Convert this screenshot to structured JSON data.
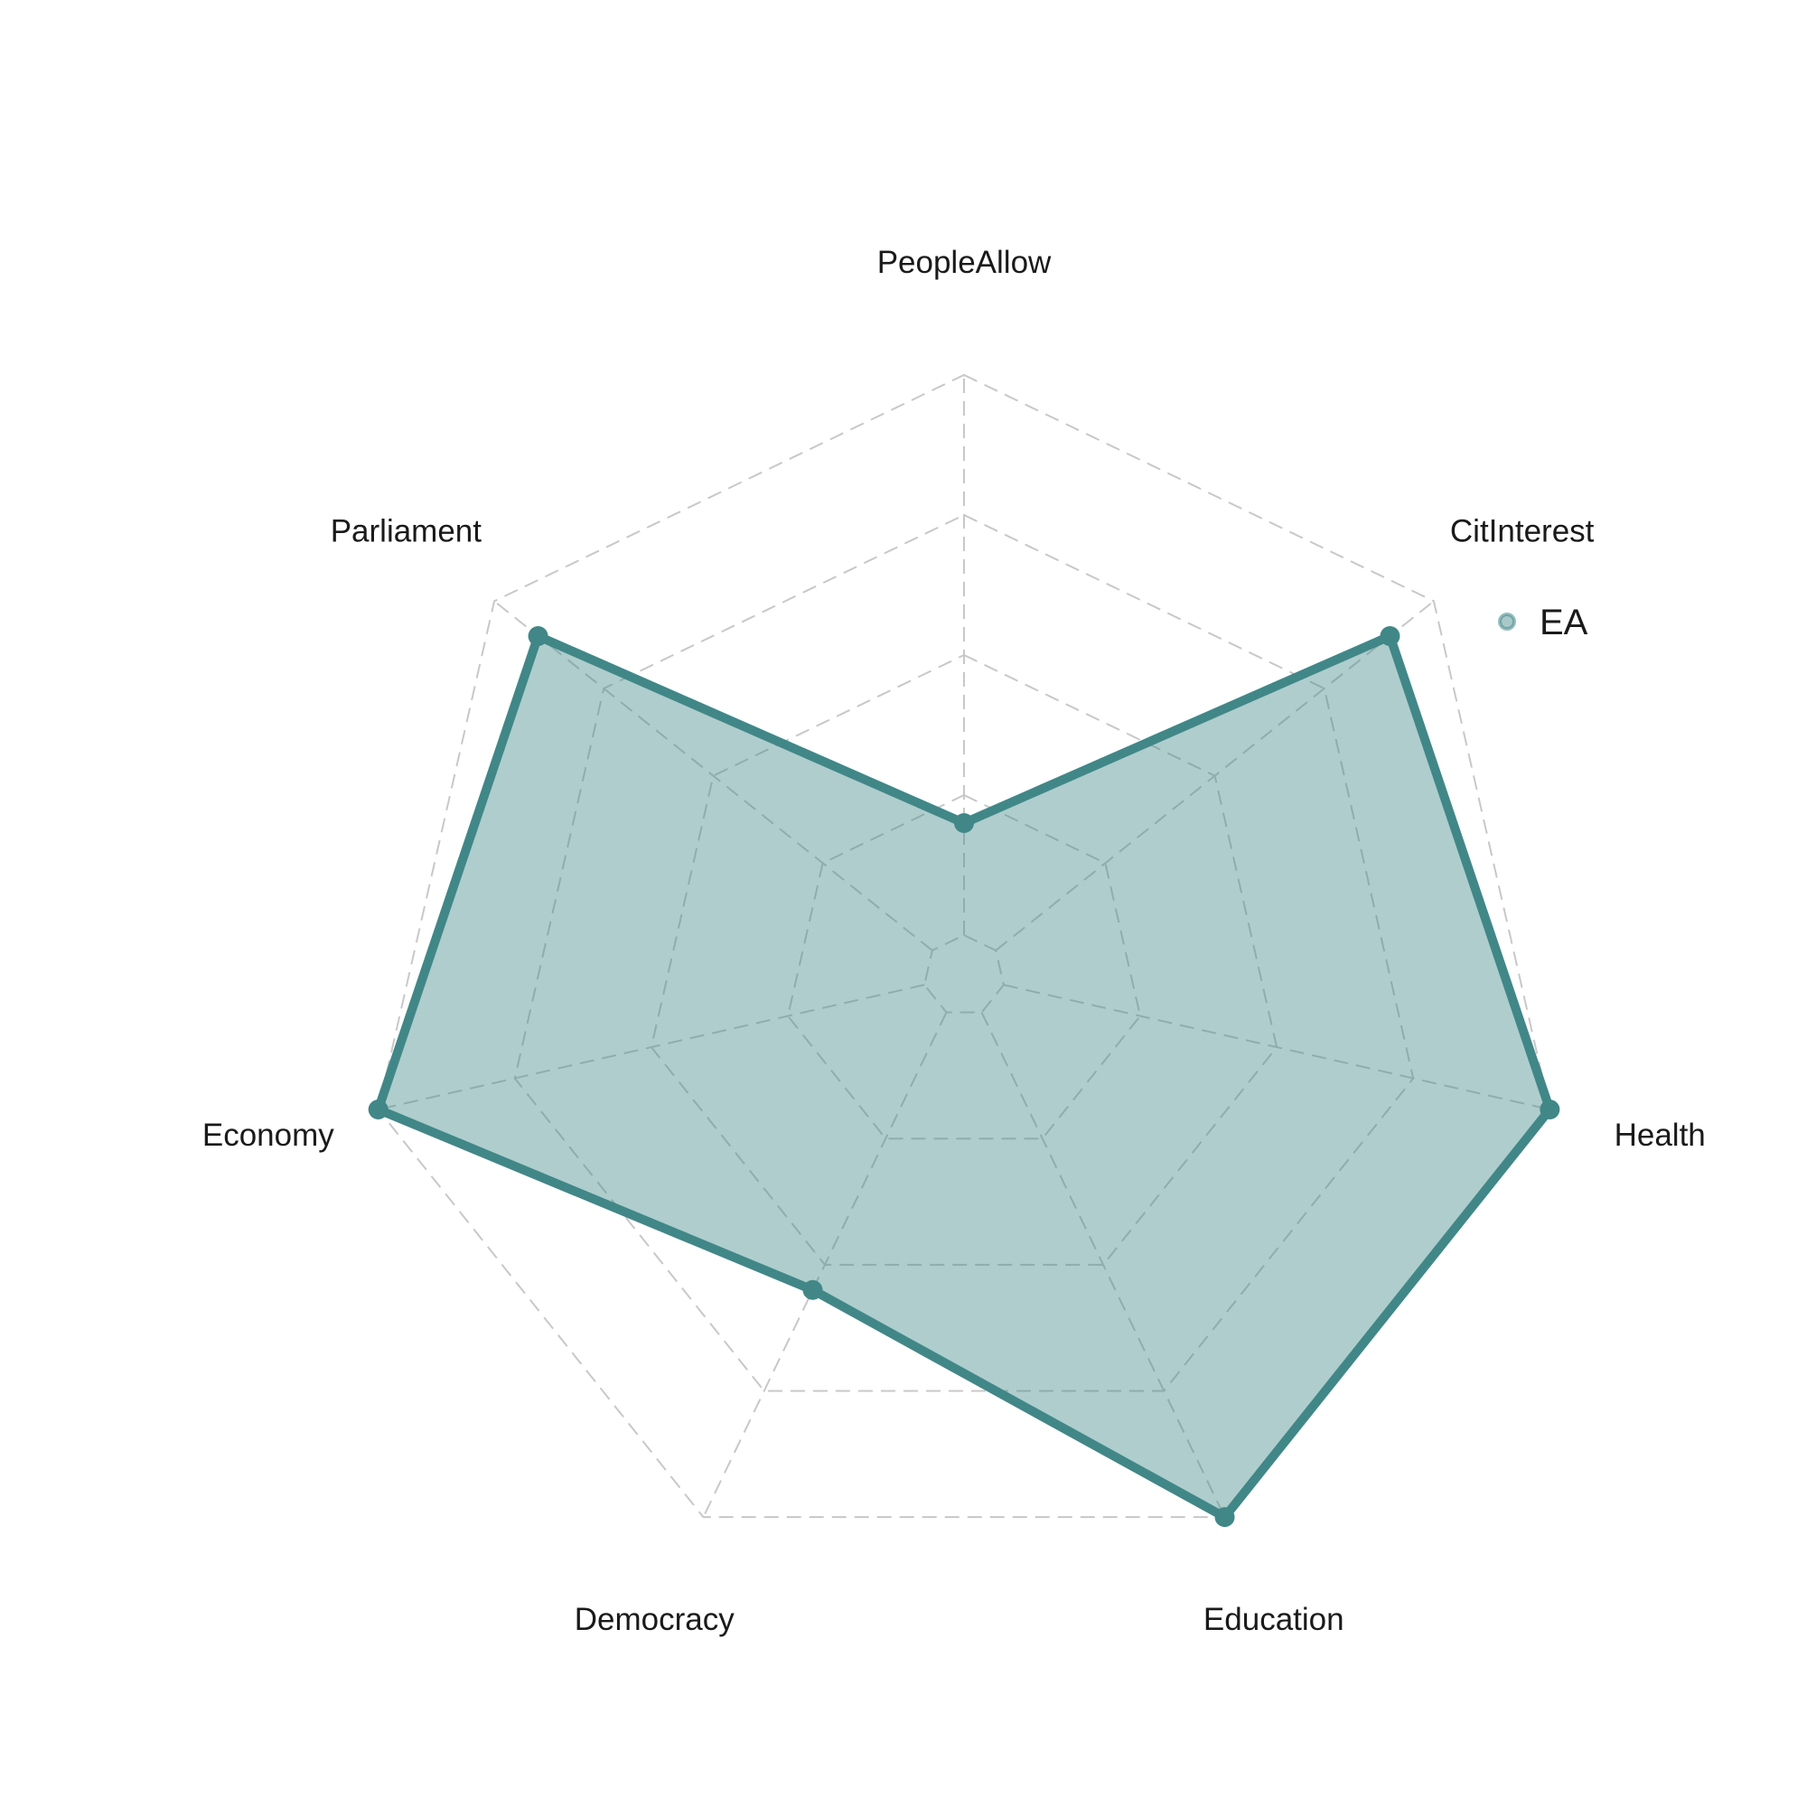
{
  "chart_data": {
    "type": "radar",
    "axes": [
      "PeopleAllow",
      "CitInterest",
      "Health",
      "Education",
      "Democracy",
      "Economy",
      "Parliament"
    ],
    "series": [
      {
        "name": "EA",
        "values": [
          0.2,
          0.9,
          1.0,
          1.0,
          0.55,
          1.0,
          0.9
        ]
      }
    ],
    "range": [
      0,
      1
    ],
    "grid_levels": 4,
    "legend": "top-right",
    "colors": {
      "line": "#418788",
      "fill": "#418788",
      "fill_opacity": 0.42,
      "grid": "#c8c8c8"
    }
  }
}
